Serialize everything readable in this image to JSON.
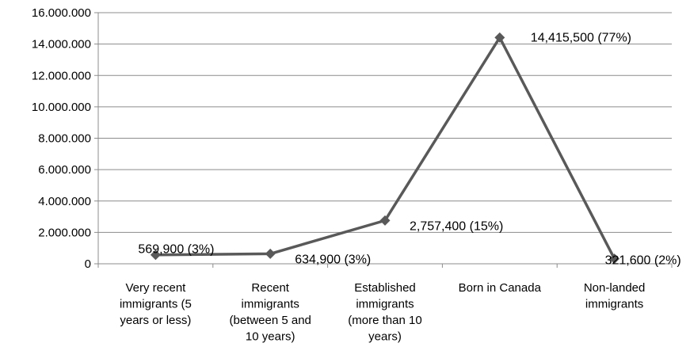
{
  "chart_data": {
    "type": "line",
    "title": "",
    "xlabel": "",
    "ylabel": "",
    "ylim": [
      0,
      16000000
    ],
    "yticks": [
      0,
      2000000,
      4000000,
      6000000,
      8000000,
      10000000,
      12000000,
      14000000,
      16000000
    ],
    "ytick_labels": [
      "0",
      "2.000.000",
      "4.000.000",
      "6.000.000",
      "8.000.000",
      "10.000.000",
      "12.000.000",
      "14.000.000",
      "16.000.000"
    ],
    "grid": true,
    "legend": "none",
    "categories": [
      [
        "Very recent",
        "immigrants (5",
        "years or less)"
      ],
      [
        "Recent",
        "immigrants",
        "(between 5 and",
        "10 years)"
      ],
      [
        "Established",
        "immigrants",
        "(more than 10",
        "years)"
      ],
      [
        "Born in Canada"
      ],
      [
        "Non-landed",
        "immigrants"
      ]
    ],
    "series": [
      {
        "values": [
          569900,
          634900,
          2757400,
          14415500,
          321600
        ],
        "data_labels": [
          "569,900 (3%)",
          "634,900 (3%)",
          "2,757,400 (15%)",
          "14,415,500 (77%)",
          "321,600 (2%)"
        ],
        "color": "#595959"
      }
    ],
    "colors": {
      "grid": "#8c8c8c",
      "axis": "#8c8c8c",
      "line": "#595959"
    }
  }
}
